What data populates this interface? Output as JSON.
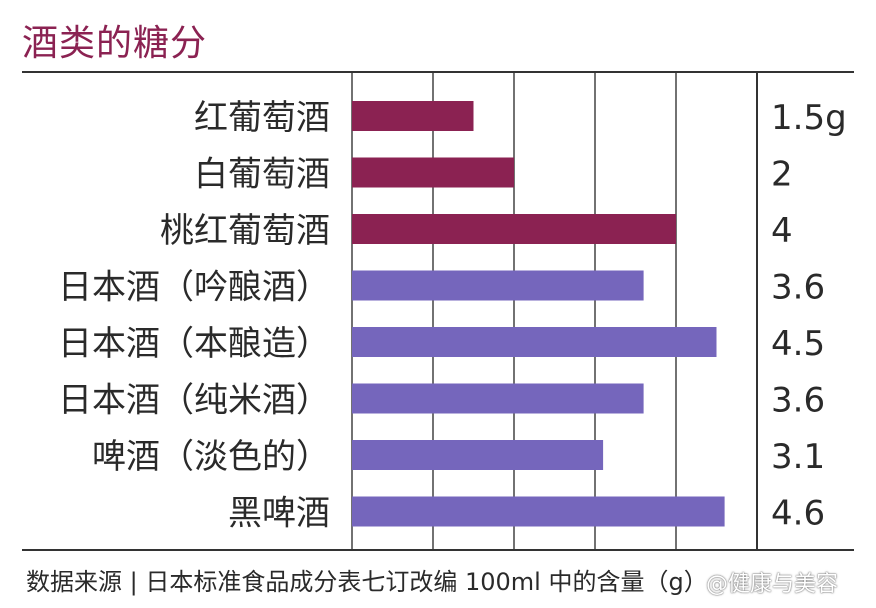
{
  "title": "酒类的糖分",
  "source": "数据来源 | 日本标准食品成分表七订改编 100ml 中的含量（g）",
  "watermark": "@健康与美容",
  "colors": {
    "wine": "#8b2252",
    "sake_beer": "#7566bc",
    "title": "#8b2252"
  },
  "chart_data": {
    "type": "bar",
    "orientation": "horizontal",
    "categories": [
      "红葡萄酒",
      "白葡萄酒",
      "桃红葡萄酒",
      "日本酒（吟酿酒）",
      "日本酒（本酿造）",
      "日本酒（纯米酒）",
      "啤酒（淡色的）",
      "黑啤酒"
    ],
    "values": [
      1.5,
      2,
      4,
      3.6,
      4.5,
      3.6,
      3.1,
      4.6
    ],
    "value_labels": [
      "1.5g",
      "2",
      "4",
      "3.6",
      "4.5",
      "3.6",
      "3.1",
      "4.6"
    ],
    "bar_colors": [
      "#8b2252",
      "#8b2252",
      "#8b2252",
      "#7566bc",
      "#7566bc",
      "#7566bc",
      "#7566bc",
      "#7566bc"
    ],
    "title": "酒类的糖分",
    "unit": "g",
    "xlim": [
      0,
      5
    ],
    "grid": true
  }
}
